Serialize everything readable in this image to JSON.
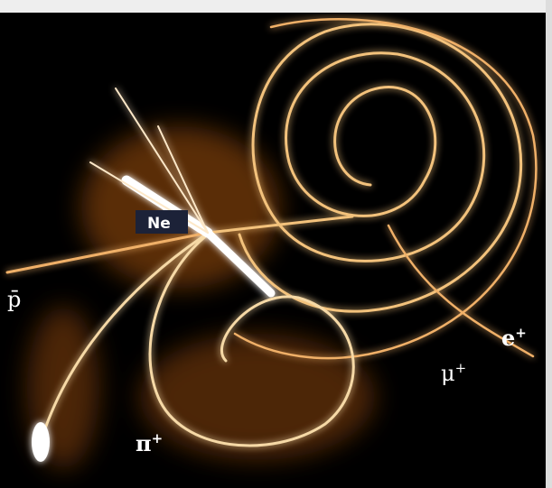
{
  "labels": {
    "nucleus": "Ne",
    "antiproton": "p̄",
    "positron": {
      "base": "e",
      "sup": "+"
    },
    "muon": {
      "base": "μ",
      "sup": "+"
    },
    "pion": {
      "base": "π",
      "sup": "+"
    }
  }
}
